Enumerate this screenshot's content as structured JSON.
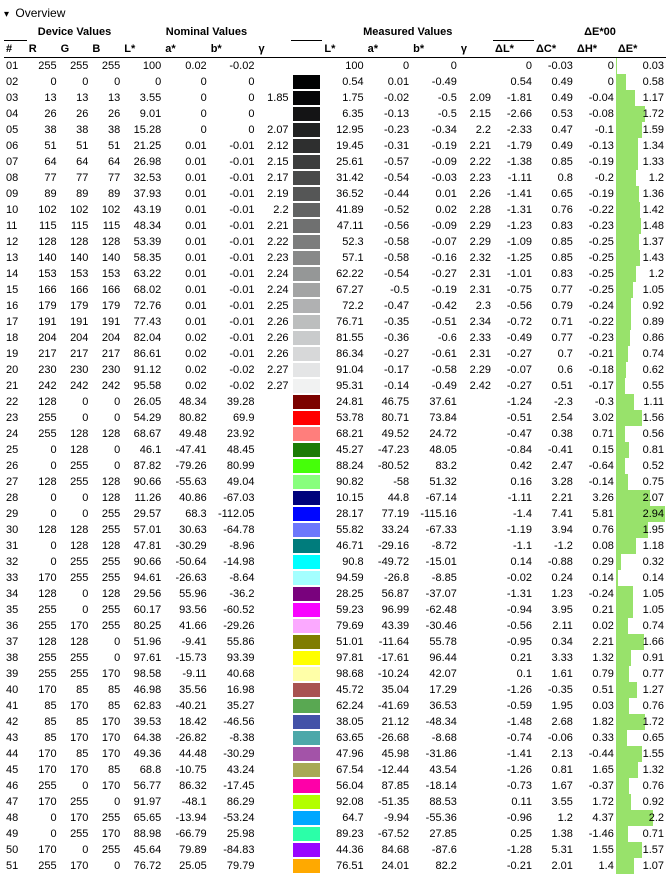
{
  "title": "Overview",
  "headers": {
    "group_device": "Device Values",
    "group_nominal": "Nominal Values",
    "group_measured": "Measured Values",
    "group_de": "ΔE*00",
    "idx": "#",
    "R": "R",
    "G": "G",
    "B": "B",
    "L": "L*",
    "a": "a*",
    "b": "b*",
    "gamma": "γ",
    "dL": "ΔL*",
    "dC": "ΔC*",
    "dH": "ΔH*",
    "dE": "ΔE*"
  },
  "de_bar_max": 3.0,
  "de_bar_color": "#98e26b",
  "rows": [
    {
      "i": "01",
      "R": 255,
      "G": 255,
      "B": 255,
      "nL": 100,
      "na": 0.02,
      "nb": -0.02,
      "ng": "",
      "mL": 100,
      "ma": 0,
      "mb": 0,
      "mg": "",
      "dL": 0,
      "dC": -0.03,
      "dH": 0,
      "dE": 0.03
    },
    {
      "i": "02",
      "R": 0,
      "G": 0,
      "B": 0,
      "nL": 0,
      "na": 0,
      "nb": 0,
      "ng": "",
      "mL": 0.54,
      "ma": 0.01,
      "mb": -0.49,
      "mg": "",
      "dL": 0.54,
      "dC": 0.49,
      "dH": 0,
      "dE": 0.58
    },
    {
      "i": "03",
      "R": 13,
      "G": 13,
      "B": 13,
      "nL": 3.55,
      "na": 0,
      "nb": 0,
      "ng": 1.85,
      "mL": 1.75,
      "ma": -0.02,
      "mb": -0.5,
      "mg": 2.09,
      "dL": -1.81,
      "dC": 0.49,
      "dH": -0.04,
      "dE": 1.17
    },
    {
      "i": "04",
      "R": 26,
      "G": 26,
      "B": 26,
      "nL": 9.01,
      "na": 0,
      "nb": 0,
      "ng": "",
      "mL": 6.35,
      "ma": -0.13,
      "mb": -0.5,
      "mg": 2.15,
      "dL": -2.66,
      "dC": 0.53,
      "dH": -0.08,
      "dE": 1.72
    },
    {
      "i": "05",
      "R": 38,
      "G": 38,
      "B": 38,
      "nL": 15.28,
      "na": 0,
      "nb": 0,
      "ng": 2.07,
      "mL": 12.95,
      "ma": -0.23,
      "mb": -0.34,
      "mg": 2.2,
      "dL": -2.33,
      "dC": 0.47,
      "dH": -0.1,
      "dE": 1.59
    },
    {
      "i": "06",
      "R": 51,
      "G": 51,
      "B": 51,
      "nL": 21.25,
      "na": 0.01,
      "nb": -0.01,
      "ng": 2.12,
      "mL": 19.45,
      "ma": -0.31,
      "mb": -0.19,
      "mg": 2.21,
      "dL": -1.79,
      "dC": 0.49,
      "dH": -0.13,
      "dE": 1.34
    },
    {
      "i": "07",
      "R": 64,
      "G": 64,
      "B": 64,
      "nL": 26.98,
      "na": 0.01,
      "nb": -0.01,
      "ng": 2.15,
      "mL": 25.61,
      "ma": -0.57,
      "mb": -0.09,
      "mg": 2.22,
      "dL": -1.38,
      "dC": 0.85,
      "dH": -0.19,
      "dE": 1.33
    },
    {
      "i": "08",
      "R": 77,
      "G": 77,
      "B": 77,
      "nL": 32.53,
      "na": 0.01,
      "nb": -0.01,
      "ng": 2.17,
      "mL": 31.42,
      "ma": -0.54,
      "mb": -0.03,
      "mg": 2.23,
      "dL": -1.11,
      "dC": 0.8,
      "dH": -0.2,
      "dE": 1.2
    },
    {
      "i": "09",
      "R": 89,
      "G": 89,
      "B": 89,
      "nL": 37.93,
      "na": 0.01,
      "nb": -0.01,
      "ng": 2.19,
      "mL": 36.52,
      "ma": -0.44,
      "mb": 0.01,
      "mg": 2.26,
      "dL": -1.41,
      "dC": 0.65,
      "dH": -0.19,
      "dE": 1.36
    },
    {
      "i": "10",
      "R": 102,
      "G": 102,
      "B": 102,
      "nL": 43.19,
      "na": 0.01,
      "nb": -0.01,
      "ng": 2.2,
      "mL": 41.89,
      "ma": -0.52,
      "mb": 0.02,
      "mg": 2.28,
      "dL": -1.31,
      "dC": 0.76,
      "dH": -0.22,
      "dE": 1.42
    },
    {
      "i": "11",
      "R": 115,
      "G": 115,
      "B": 115,
      "nL": 48.34,
      "na": 0.01,
      "nb": -0.01,
      "ng": 2.21,
      "mL": 47.11,
      "ma": -0.56,
      "mb": -0.09,
      "mg": 2.29,
      "dL": -1.23,
      "dC": 0.83,
      "dH": -0.23,
      "dE": 1.48
    },
    {
      "i": "12",
      "R": 128,
      "G": 128,
      "B": 128,
      "nL": 53.39,
      "na": 0.01,
      "nb": -0.01,
      "ng": 2.22,
      "mL": 52.3,
      "ma": -0.58,
      "mb": -0.07,
      "mg": 2.29,
      "dL": -1.09,
      "dC": 0.85,
      "dH": -0.25,
      "dE": 1.37
    },
    {
      "i": "13",
      "R": 140,
      "G": 140,
      "B": 140,
      "nL": 58.35,
      "na": 0.01,
      "nb": -0.01,
      "ng": 2.23,
      "mL": 57.1,
      "ma": -0.58,
      "mb": -0.16,
      "mg": 2.32,
      "dL": -1.25,
      "dC": 0.85,
      "dH": -0.25,
      "dE": 1.43
    },
    {
      "i": "14",
      "R": 153,
      "G": 153,
      "B": 153,
      "nL": 63.22,
      "na": 0.01,
      "nb": -0.01,
      "ng": 2.24,
      "mL": 62.22,
      "ma": -0.54,
      "mb": -0.27,
      "mg": 2.31,
      "dL": -1.01,
      "dC": 0.83,
      "dH": -0.25,
      "dE": 1.2
    },
    {
      "i": "15",
      "R": 166,
      "G": 166,
      "B": 166,
      "nL": 68.02,
      "na": 0.01,
      "nb": -0.01,
      "ng": 2.24,
      "mL": 67.27,
      "ma": -0.5,
      "mb": -0.19,
      "mg": 2.31,
      "dL": -0.75,
      "dC": 0.77,
      "dH": -0.25,
      "dE": 1.05
    },
    {
      "i": "16",
      "R": 179,
      "G": 179,
      "B": 179,
      "nL": 72.76,
      "na": 0.01,
      "nb": -0.01,
      "ng": 2.25,
      "mL": 72.2,
      "ma": -0.47,
      "mb": -0.42,
      "mg": 2.3,
      "dL": -0.56,
      "dC": 0.79,
      "dH": -0.24,
      "dE": 0.92
    },
    {
      "i": "17",
      "R": 191,
      "G": 191,
      "B": 191,
      "nL": 77.43,
      "na": 0.01,
      "nb": -0.01,
      "ng": 2.26,
      "mL": 76.71,
      "ma": -0.35,
      "mb": -0.51,
      "mg": 2.34,
      "dL": -0.72,
      "dC": 0.71,
      "dH": -0.22,
      "dE": 0.89
    },
    {
      "i": "18",
      "R": 204,
      "G": 204,
      "B": 204,
      "nL": 82.04,
      "na": 0.02,
      "nb": -0.01,
      "ng": 2.26,
      "mL": 81.55,
      "ma": -0.36,
      "mb": -0.6,
      "mg": 2.33,
      "dL": -0.49,
      "dC": 0.77,
      "dH": -0.23,
      "dE": 0.86
    },
    {
      "i": "19",
      "R": 217,
      "G": 217,
      "B": 217,
      "nL": 86.61,
      "na": 0.02,
      "nb": -0.01,
      "ng": 2.26,
      "mL": 86.34,
      "ma": -0.27,
      "mb": -0.61,
      "mg": 2.31,
      "dL": -0.27,
      "dC": 0.7,
      "dH": -0.21,
      "dE": 0.74
    },
    {
      "i": "20",
      "R": 230,
      "G": 230,
      "B": 230,
      "nL": 91.12,
      "na": 0.02,
      "nb": -0.02,
      "ng": 2.27,
      "mL": 91.04,
      "ma": -0.17,
      "mb": -0.58,
      "mg": 2.29,
      "dL": -0.07,
      "dC": 0.6,
      "dH": -0.18,
      "dE": 0.62
    },
    {
      "i": "21",
      "R": 242,
      "G": 242,
      "B": 242,
      "nL": 95.58,
      "na": 0.02,
      "nb": -0.02,
      "ng": 2.27,
      "mL": 95.31,
      "ma": -0.14,
      "mb": -0.49,
      "mg": 2.42,
      "dL": -0.27,
      "dC": 0.51,
      "dH": -0.17,
      "dE": 0.55
    },
    {
      "i": "22",
      "R": 128,
      "G": 0,
      "B": 0,
      "nL": 26.05,
      "na": 48.34,
      "nb": 39.28,
      "ng": "",
      "mL": 24.81,
      "ma": 46.75,
      "mb": 37.61,
      "mg": "",
      "dL": -1.24,
      "dC": -2.3,
      "dH": -0.3,
      "dE": 1.11
    },
    {
      "i": "23",
      "R": 255,
      "G": 0,
      "B": 0,
      "nL": 54.29,
      "na": 80.82,
      "nb": 69.9,
      "ng": "",
      "mL": 53.78,
      "ma": 80.71,
      "mb": 73.84,
      "mg": "",
      "dL": -0.51,
      "dC": 2.54,
      "dH": 3.02,
      "dE": 1.56
    },
    {
      "i": "24",
      "R": 255,
      "G": 128,
      "B": 128,
      "nL": 68.67,
      "na": 49.48,
      "nb": 23.92,
      "ng": "",
      "mL": 68.21,
      "ma": 49.52,
      "mb": 24.72,
      "mg": "",
      "dL": -0.47,
      "dC": 0.38,
      "dH": 0.71,
      "dE": 0.56
    },
    {
      "i": "25",
      "R": 0,
      "G": 128,
      "B": 0,
      "nL": 46.1,
      "na": -47.41,
      "nb": 48.45,
      "ng": "",
      "mL": 45.27,
      "ma": -47.23,
      "mb": 48.05,
      "mg": "",
      "dL": -0.84,
      "dC": -0.41,
      "dH": 0.15,
      "dE": 0.81
    },
    {
      "i": "26",
      "R": 0,
      "G": 255,
      "B": 0,
      "nL": 87.82,
      "na": -79.26,
      "nb": 80.99,
      "ng": "",
      "mL": 88.24,
      "ma": -80.52,
      "mb": 83.2,
      "mg": "",
      "dL": 0.42,
      "dC": 2.47,
      "dH": -0.64,
      "dE": 0.52
    },
    {
      "i": "27",
      "R": 128,
      "G": 255,
      "B": 128,
      "nL": 90.66,
      "na": -55.63,
      "nb": 49.04,
      "ng": "",
      "mL": 90.82,
      "ma": -58,
      "mb": 51.32,
      "mg": "",
      "dL": 0.16,
      "dC": 3.28,
      "dH": -0.14,
      "dE": 0.75
    },
    {
      "i": "28",
      "R": 0,
      "G": 0,
      "B": 128,
      "nL": 11.26,
      "na": 40.86,
      "nb": -67.03,
      "ng": "",
      "mL": 10.15,
      "ma": 44.8,
      "mb": -67.14,
      "mg": "",
      "dL": -1.11,
      "dC": 2.21,
      "dH": 3.26,
      "dE": 2.07
    },
    {
      "i": "29",
      "R": 0,
      "G": 0,
      "B": 255,
      "nL": 29.57,
      "na": 68.3,
      "nb": -112.05,
      "ng": "",
      "mL": 28.17,
      "ma": 77.19,
      "mb": -115.16,
      "mg": "",
      "dL": -1.4,
      "dC": 7.41,
      "dH": 5.81,
      "dE": 2.94
    },
    {
      "i": "30",
      "R": 128,
      "G": 128,
      "B": 255,
      "nL": 57.01,
      "na": 30.63,
      "nb": -64.78,
      "ng": "",
      "mL": 55.82,
      "ma": 33.24,
      "mb": -67.33,
      "mg": "",
      "dL": -1.19,
      "dC": 3.94,
      "dH": 0.76,
      "dE": 1.95
    },
    {
      "i": "31",
      "R": 0,
      "G": 128,
      "B": 128,
      "nL": 47.81,
      "na": -30.29,
      "nb": -8.96,
      "ng": "",
      "mL": 46.71,
      "ma": -29.16,
      "mb": -8.72,
      "mg": "",
      "dL": -1.1,
      "dC": -1.2,
      "dH": 0.08,
      "dE": 1.18
    },
    {
      "i": "32",
      "R": 0,
      "G": 255,
      "B": 255,
      "nL": 90.66,
      "na": -50.64,
      "nb": -14.98,
      "ng": "",
      "mL": 90.8,
      "ma": -49.72,
      "mb": -15.01,
      "mg": "",
      "dL": 0.14,
      "dC": -0.88,
      "dH": 0.29,
      "dE": 0.32
    },
    {
      "i": "33",
      "R": 170,
      "G": 255,
      "B": 255,
      "nL": 94.61,
      "na": -26.63,
      "nb": -8.64,
      "ng": "",
      "mL": 94.59,
      "ma": -26.8,
      "mb": -8.85,
      "mg": "",
      "dL": -0.02,
      "dC": 0.24,
      "dH": 0.14,
      "dE": 0.14
    },
    {
      "i": "34",
      "R": 128,
      "G": 0,
      "B": 128,
      "nL": 29.56,
      "na": 55.96,
      "nb": -36.2,
      "ng": "",
      "mL": 28.25,
      "ma": 56.87,
      "mb": -37.07,
      "mg": "",
      "dL": -1.31,
      "dC": 1.23,
      "dH": -0.24,
      "dE": 1.05
    },
    {
      "i": "35",
      "R": 255,
      "G": 0,
      "B": 255,
      "nL": 60.17,
      "na": 93.56,
      "nb": -60.52,
      "ng": "",
      "mL": 59.23,
      "ma": 96.99,
      "mb": -62.48,
      "mg": "",
      "dL": -0.94,
      "dC": 3.95,
      "dH": 0.21,
      "dE": 1.05
    },
    {
      "i": "36",
      "R": 255,
      "G": 170,
      "B": 255,
      "nL": 80.25,
      "na": 41.66,
      "nb": -29.26,
      "ng": "",
      "mL": 79.69,
      "ma": 43.39,
      "mb": -30.46,
      "mg": "",
      "dL": -0.56,
      "dC": 2.11,
      "dH": 0.02,
      "dE": 0.74
    },
    {
      "i": "37",
      "R": 128,
      "G": 128,
      "B": 0,
      "nL": 51.96,
      "na": -9.41,
      "nb": 55.86,
      "ng": "",
      "mL": 51.01,
      "ma": -11.64,
      "mb": 55.78,
      "mg": "",
      "dL": -0.95,
      "dC": 0.34,
      "dH": 2.21,
      "dE": 1.66
    },
    {
      "i": "38",
      "R": 255,
      "G": 255,
      "B": 0,
      "nL": 97.61,
      "na": -15.73,
      "nb": 93.39,
      "ng": "",
      "mL": 97.81,
      "ma": -17.61,
      "mb": 96.44,
      "mg": "",
      "dL": 0.21,
      "dC": 3.33,
      "dH": 1.32,
      "dE": 0.91
    },
    {
      "i": "39",
      "R": 255,
      "G": 255,
      "B": 170,
      "nL": 98.58,
      "na": -9.11,
      "nb": 40.68,
      "ng": "",
      "mL": 98.68,
      "ma": -10.24,
      "mb": 42.07,
      "mg": "",
      "dL": 0.1,
      "dC": 1.61,
      "dH": 0.79,
      "dE": 0.77
    },
    {
      "i": "40",
      "R": 170,
      "G": 85,
      "B": 85,
      "nL": 46.98,
      "na": 35.56,
      "nb": 16.98,
      "ng": "",
      "mL": 45.72,
      "ma": 35.04,
      "mb": 17.29,
      "mg": "",
      "dL": -1.26,
      "dC": -0.35,
      "dH": 0.51,
      "dE": 1.27
    },
    {
      "i": "41",
      "R": 85,
      "G": 170,
      "B": 85,
      "nL": 62.83,
      "na": -40.21,
      "nb": 35.27,
      "ng": "",
      "mL": 62.24,
      "ma": -41.69,
      "mb": 36.53,
      "mg": "",
      "dL": -0.59,
      "dC": 1.95,
      "dH": 0.03,
      "dE": 0.76
    },
    {
      "i": "42",
      "R": 85,
      "G": 85,
      "B": 170,
      "nL": 39.53,
      "na": 18.42,
      "nb": -46.56,
      "ng": "",
      "mL": 38.05,
      "ma": 21.12,
      "mb": -48.34,
      "mg": "",
      "dL": -1.48,
      "dC": 2.68,
      "dH": 1.82,
      "dE": 1.72
    },
    {
      "i": "43",
      "R": 85,
      "G": 170,
      "B": 170,
      "nL": 64.38,
      "na": -26.82,
      "nb": -8.38,
      "ng": "",
      "mL": 63.65,
      "ma": -26.68,
      "mb": -8.68,
      "mg": "",
      "dL": -0.74,
      "dC": -0.06,
      "dH": 0.33,
      "dE": 0.65
    },
    {
      "i": "44",
      "R": 170,
      "G": 85,
      "B": 170,
      "nL": 49.36,
      "na": 44.48,
      "nb": -30.29,
      "ng": "",
      "mL": 47.96,
      "ma": 45.98,
      "mb": -31.86,
      "mg": "",
      "dL": -1.41,
      "dC": 2.13,
      "dH": -0.44,
      "dE": 1.55
    },
    {
      "i": "45",
      "R": 170,
      "G": 170,
      "B": 85,
      "nL": 68.8,
      "na": -10.75,
      "nb": 43.24,
      "ng": "",
      "mL": 67.54,
      "ma": -12.44,
      "mb": 43.54,
      "mg": "",
      "dL": -1.26,
      "dC": 0.81,
      "dH": 1.65,
      "dE": 1.32
    },
    {
      "i": "46",
      "R": 255,
      "G": 0,
      "B": 170,
      "nL": 56.77,
      "na": 86.32,
      "nb": -17.45,
      "ng": "",
      "mL": 56.04,
      "ma": 87.85,
      "mb": -18.14,
      "mg": "",
      "dL": -0.73,
      "dC": 1.67,
      "dH": -0.37,
      "dE": 0.76
    },
    {
      "i": "47",
      "R": 170,
      "G": 255,
      "B": 0,
      "nL": 91.97,
      "na": -48.1,
      "nb": 86.29,
      "ng": "",
      "mL": 92.08,
      "ma": -51.35,
      "mb": 88.53,
      "mg": "",
      "dL": 0.11,
      "dC": 3.55,
      "dH": 1.72,
      "dE": 0.92
    },
    {
      "i": "48",
      "R": 0,
      "G": 170,
      "B": 255,
      "nL": 65.65,
      "na": -13.94,
      "nb": -53.24,
      "ng": "",
      "mL": 64.7,
      "ma": -9.94,
      "mb": -55.36,
      "mg": "",
      "dL": -0.96,
      "dC": 1.2,
      "dH": 4.37,
      "dE": 2.2
    },
    {
      "i": "49",
      "R": 0,
      "G": 255,
      "B": 170,
      "nL": 88.98,
      "na": -66.79,
      "nb": 25.98,
      "ng": "",
      "mL": 89.23,
      "ma": -67.52,
      "mb": 27.85,
      "mg": "",
      "dL": 0.25,
      "dC": 1.38,
      "dH": -1.46,
      "dE": 0.71
    },
    {
      "i": "50",
      "R": 170,
      "G": 0,
      "B": 255,
      "nL": 45.64,
      "na": 79.89,
      "nb": -84.83,
      "ng": "",
      "mL": 44.36,
      "ma": 84.68,
      "mb": -87.6,
      "mg": "",
      "dL": -1.28,
      "dC": 5.31,
      "dH": 1.55,
      "dE": 1.57
    },
    {
      "i": "51",
      "R": 255,
      "G": 170,
      "B": 0,
      "nL": 76.72,
      "na": 25.05,
      "nb": 79.79,
      "ng": "",
      "mL": 76.51,
      "ma": 24.01,
      "mb": 82.2,
      "mg": "",
      "dL": -0.21,
      "dC": 2.01,
      "dH": 1.4,
      "dE": 1.07
    }
  ]
}
